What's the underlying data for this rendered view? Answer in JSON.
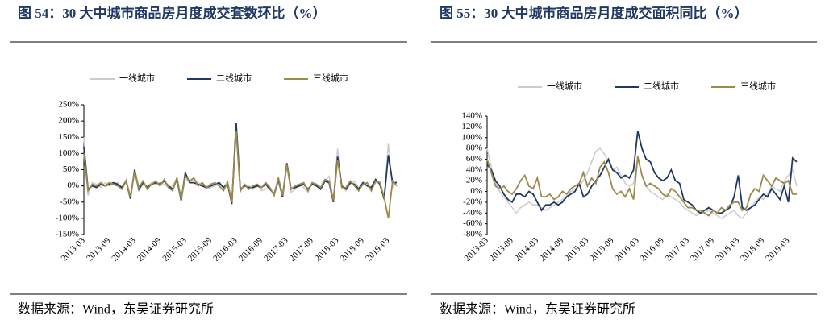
{
  "chart_data": [
    {
      "type": "line",
      "title": "图 54：30 大中城市商品房月度成交套数环比（%）",
      "source": "数据来源：Wind，东吴证券研究所",
      "categories": [
        "2013-03",
        null,
        null,
        null,
        null,
        null,
        "2013-09",
        null,
        null,
        null,
        null,
        null,
        "2014-03",
        null,
        null,
        null,
        null,
        null,
        "2014-09",
        null,
        null,
        null,
        null,
        null,
        "2015-03",
        null,
        null,
        null,
        null,
        null,
        "2015-09",
        null,
        null,
        null,
        null,
        null,
        "2016-03",
        null,
        null,
        null,
        null,
        null,
        "2016-09",
        null,
        null,
        null,
        null,
        null,
        "2017-03",
        null,
        null,
        null,
        null,
        null,
        "2017-09",
        null,
        null,
        null,
        null,
        null,
        "2018-03",
        null,
        null,
        null,
        null,
        null,
        "2018-09",
        null,
        null,
        null,
        null,
        null,
        "2019-03",
        null,
        null
      ],
      "ylim": [
        -150,
        250
      ],
      "yticks": [
        {
          "value": -150,
          "label": "-150%"
        },
        {
          "value": -100,
          "label": "-100%"
        },
        {
          "value": -50,
          "label": "-50%"
        },
        {
          "value": 0,
          "label": "0%"
        },
        {
          "value": 50,
          "label": "50%"
        },
        {
          "value": 100,
          "label": "100%"
        },
        {
          "value": 150,
          "label": "150%"
        },
        {
          "value": 200,
          "label": "200%"
        },
        {
          "value": 250,
          "label": "250%"
        }
      ],
      "series": [
        {
          "name": "一线城市",
          "color": "#cccccc",
          "values": [
            150,
            -30,
            10,
            5,
            -5,
            10,
            0,
            5,
            10,
            -10,
            20,
            -30,
            40,
            -15,
            5,
            0,
            10,
            5,
            10,
            5,
            -5,
            0,
            25,
            -40,
            20,
            15,
            20,
            10,
            0,
            -10,
            -5,
            0,
            5,
            -5,
            15,
            -60,
            170,
            -20,
            5,
            0,
            -10,
            5,
            -15,
            -10,
            -5,
            -30,
            10,
            -20,
            60,
            -20,
            -10,
            5,
            -5,
            -20,
            10,
            5,
            -5,
            15,
            30,
            -40,
            115,
            -5,
            -15,
            5,
            15,
            -5,
            5,
            0,
            -10,
            10,
            15,
            -45,
            130,
            -5,
            15
          ]
        },
        {
          "name": "二线城市",
          "color": "#1f3864",
          "values": [
            120,
            -10,
            0,
            -5,
            5,
            0,
            5,
            10,
            5,
            -5,
            15,
            -40,
            50,
            -10,
            10,
            -5,
            5,
            10,
            5,
            15,
            0,
            -10,
            20,
            -45,
            40,
            10,
            10,
            5,
            0,
            -5,
            0,
            5,
            10,
            -5,
            5,
            -55,
            195,
            -10,
            0,
            -5,
            -5,
            0,
            -5,
            5,
            -10,
            -25,
            20,
            -35,
            70,
            -10,
            -5,
            0,
            5,
            -10,
            5,
            0,
            -10,
            15,
            10,
            -50,
            90,
            0,
            -10,
            10,
            5,
            -10,
            10,
            0,
            -5,
            20,
            5,
            -40,
            95,
            10,
            10
          ]
        },
        {
          "name": "三线城市",
          "color": "#9c8a4a",
          "values": [
            100,
            -15,
            5,
            0,
            10,
            0,
            10,
            5,
            0,
            -10,
            15,
            -35,
            45,
            -5,
            15,
            -10,
            5,
            15,
            0,
            20,
            -5,
            -15,
            25,
            -40,
            30,
            15,
            25,
            0,
            10,
            -5,
            5,
            10,
            0,
            -15,
            10,
            -50,
            170,
            -15,
            5,
            -10,
            0,
            5,
            -5,
            10,
            -5,
            -30,
            25,
            -30,
            65,
            -10,
            0,
            5,
            10,
            -15,
            10,
            5,
            -5,
            20,
            15,
            -45,
            80,
            -5,
            -5,
            15,
            0,
            -15,
            5,
            10,
            -15,
            15,
            10,
            -35,
            -100,
            15,
            0
          ]
        }
      ]
    },
    {
      "type": "line",
      "title": "图 55：30 大中城市商品房月度成交面积同比（%）",
      "source": "数据来源：Wind，东吴证券研究所",
      "categories": [
        "2013-03",
        null,
        null,
        null,
        null,
        null,
        "2013-09",
        null,
        null,
        null,
        null,
        null,
        "2014-03",
        null,
        null,
        null,
        null,
        null,
        "2014-09",
        null,
        null,
        null,
        null,
        null,
        "2015-03",
        null,
        null,
        null,
        null,
        null,
        "2015-09",
        null,
        null,
        null,
        null,
        null,
        "2016-03",
        null,
        null,
        null,
        null,
        null,
        "2016-09",
        null,
        null,
        null,
        null,
        null,
        "2017-03",
        null,
        null,
        null,
        null,
        null,
        "2017-09",
        null,
        null,
        null,
        null,
        null,
        "2018-03",
        null,
        null,
        null,
        null,
        null,
        "2018-09",
        null,
        null,
        null,
        null,
        null,
        "2019-03",
        null,
        null
      ],
      "ylim": [
        -80,
        140
      ],
      "yticks": [
        {
          "value": -80,
          "label": "-80%"
        },
        {
          "value": -60,
          "label": "-60%"
        },
        {
          "value": -40,
          "label": "-40%"
        },
        {
          "value": -20,
          "label": "-20%"
        },
        {
          "value": 0,
          "label": "0%"
        },
        {
          "value": 20,
          "label": "20%"
        },
        {
          "value": 40,
          "label": "40%"
        },
        {
          "value": 60,
          "label": "60%"
        },
        {
          "value": 80,
          "label": "80%"
        },
        {
          "value": 100,
          "label": "100%"
        },
        {
          "value": 120,
          "label": "120%"
        },
        {
          "value": 140,
          "label": "140%"
        }
      ],
      "series": [
        {
          "name": "一线城市",
          "color": "#cccccc",
          "values": [
            80,
            45,
            15,
            0,
            -10,
            -20,
            -30,
            -40,
            -30,
            -25,
            -20,
            -25,
            -25,
            -30,
            -35,
            -30,
            -25,
            -20,
            -15,
            -10,
            0,
            5,
            10,
            20,
            35,
            55,
            75,
            80,
            70,
            55,
            40,
            45,
            30,
            15,
            10,
            15,
            60,
            30,
            10,
            0,
            -5,
            -10,
            -15,
            -5,
            -10,
            -15,
            -20,
            -30,
            -35,
            -40,
            -45,
            -40,
            -40,
            -35,
            -40,
            -45,
            -50,
            -45,
            -40,
            -35,
            -45,
            -50,
            -40,
            -30,
            -20,
            -10,
            -15,
            -5,
            10,
            5,
            0,
            20,
            30,
            40,
            10
          ]
        },
        {
          "name": "二线城市",
          "color": "#1f3864",
          "values": [
            50,
            40,
            20,
            10,
            -5,
            -15,
            -20,
            -5,
            -5,
            -10,
            0,
            -5,
            -20,
            -35,
            -25,
            -25,
            -20,
            -25,
            -20,
            -10,
            -5,
            0,
            15,
            -10,
            -5,
            10,
            20,
            30,
            45,
            60,
            40,
            35,
            25,
            30,
            25,
            40,
            112,
            80,
            60,
            55,
            35,
            25,
            20,
            25,
            40,
            20,
            15,
            -15,
            -20,
            -25,
            -35,
            -40,
            -35,
            -30,
            -35,
            -40,
            -40,
            -35,
            -30,
            -10,
            30,
            -30,
            -35,
            -30,
            -25,
            -15,
            -5,
            -10,
            5,
            -5,
            -15,
            10,
            -20,
            62,
            55
          ]
        },
        {
          "name": "三线城市",
          "color": "#9c8a4a",
          "values": [
            60,
            35,
            10,
            5,
            10,
            0,
            -5,
            5,
            20,
            30,
            10,
            5,
            25,
            -10,
            -10,
            -5,
            -15,
            -10,
            0,
            -5,
            5,
            10,
            15,
            35,
            10,
            25,
            15,
            45,
            55,
            35,
            5,
            -5,
            0,
            -10,
            5,
            -15,
            65,
            30,
            10,
            15,
            10,
            5,
            -5,
            -10,
            5,
            0,
            -10,
            -20,
            -30,
            -30,
            -35,
            -35,
            -40,
            -45,
            -35,
            -40,
            -30,
            -35,
            -25,
            -20,
            -20,
            -35,
            -30,
            -5,
            5,
            0,
            30,
            20,
            10,
            25,
            20,
            15,
            20,
            -5,
            -5
          ]
        }
      ]
    }
  ]
}
